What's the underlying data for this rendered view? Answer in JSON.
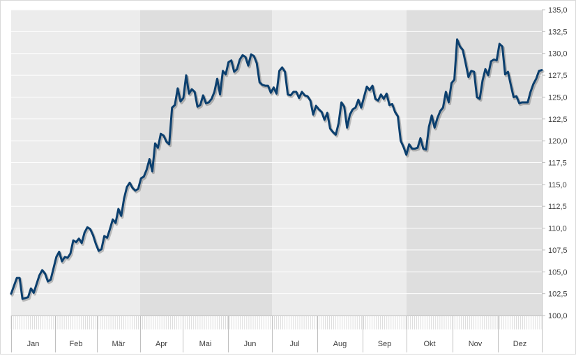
{
  "chart_data": {
    "type": "line",
    "title": "",
    "xlabel": "",
    "ylabel": "",
    "ylim": [
      100,
      135
    ],
    "y_ticks": [
      "100,0",
      "102,5",
      "105,0",
      "107,5",
      "110,0",
      "112,5",
      "115,0",
      "117,5",
      "120,0",
      "122,5",
      "125,0",
      "127,5",
      "130,0",
      "132,5",
      "135,0"
    ],
    "y_tick_values": [
      100,
      102.5,
      105,
      107.5,
      110,
      112.5,
      115,
      117.5,
      120,
      122.5,
      125,
      127.5,
      130,
      132.5,
      135
    ],
    "months": [
      "Jan",
      "Feb",
      "Mär",
      "Apr",
      "Mai",
      "Jun",
      "Jul",
      "Aug",
      "Sep",
      "Okt",
      "Nov",
      "Dez"
    ],
    "shaded_quarters": [
      "Apr",
      "Mai",
      "Jun",
      "Okt",
      "Nov",
      "Dez"
    ],
    "grid": true,
    "legend": "none",
    "colors": {
      "line": "#0b3f6e",
      "band_light": "#ececec",
      "band_dark": "#dedede",
      "grid": "#ffffff"
    },
    "series": [
      {
        "points": [
          [
            0,
            102.5
          ],
          [
            2,
            104.3
          ],
          [
            3,
            104.3
          ],
          [
            4,
            101.9
          ],
          [
            6,
            102.1
          ],
          [
            7,
            103.1
          ],
          [
            8,
            102.6
          ],
          [
            10,
            104.6
          ],
          [
            11,
            105.2
          ],
          [
            12,
            104.8
          ],
          [
            13,
            103.9
          ],
          [
            14,
            104.1
          ],
          [
            16,
            106.7
          ],
          [
            17,
            107.3
          ],
          [
            18,
            106.2
          ],
          [
            19,
            106.7
          ],
          [
            20,
            106.6
          ],
          [
            21,
            107.1
          ],
          [
            22,
            108.6
          ],
          [
            23,
            108.4
          ],
          [
            24,
            108.8
          ],
          [
            25,
            108.3
          ],
          [
            26,
            109.5
          ],
          [
            27,
            110.1
          ],
          [
            28,
            109.9
          ],
          [
            29,
            109.2
          ],
          [
            30,
            108.2
          ],
          [
            31,
            107.4
          ],
          [
            32,
            107.6
          ],
          [
            33,
            109.1
          ],
          [
            34,
            108.9
          ],
          [
            35,
            109.9
          ],
          [
            36,
            111.0
          ],
          [
            37,
            110.6
          ],
          [
            38,
            112.2
          ],
          [
            39,
            111.4
          ],
          [
            40,
            113.4
          ],
          [
            41,
            114.7
          ],
          [
            42,
            115.2
          ],
          [
            43,
            114.6
          ],
          [
            44,
            114.3
          ],
          [
            45,
            114.5
          ],
          [
            46,
            115.7
          ],
          [
            47,
            115.9
          ],
          [
            48,
            116.7
          ],
          [
            49,
            117.9
          ],
          [
            50,
            116.5
          ],
          [
            51,
            119.7
          ],
          [
            52,
            119.2
          ],
          [
            53,
            120.8
          ],
          [
            54,
            120.6
          ],
          [
            55,
            119.9
          ],
          [
            56,
            119.6
          ],
          [
            57,
            123.8
          ],
          [
            58,
            124.1
          ],
          [
            59,
            126.0
          ],
          [
            60,
            124.5
          ],
          [
            61,
            124.9
          ],
          [
            62,
            127.5
          ],
          [
            63,
            125.4
          ],
          [
            64,
            125.9
          ],
          [
            65,
            125.6
          ],
          [
            66,
            123.9
          ],
          [
            67,
            124.1
          ],
          [
            68,
            125.2
          ],
          [
            69,
            124.3
          ],
          [
            70,
            124.4
          ],
          [
            71,
            124.8
          ],
          [
            72,
            125.6
          ],
          [
            73,
            127.1
          ],
          [
            74,
            125.3
          ],
          [
            75,
            128.0
          ],
          [
            76,
            127.6
          ],
          [
            77,
            129.0
          ],
          [
            78,
            129.2
          ],
          [
            79,
            127.9
          ],
          [
            80,
            128.2
          ],
          [
            81,
            129.3
          ],
          [
            82,
            129.8
          ],
          [
            83,
            129.6
          ],
          [
            84,
            128.6
          ],
          [
            85,
            129.9
          ],
          [
            86,
            129.7
          ],
          [
            87,
            128.9
          ],
          [
            88,
            126.7
          ],
          [
            89,
            126.4
          ],
          [
            90,
            126.3
          ],
          [
            91,
            126.3
          ],
          [
            92,
            125.5
          ],
          [
            93,
            126.1
          ],
          [
            94,
            125.4
          ],
          [
            95,
            128.0
          ],
          [
            96,
            128.4
          ],
          [
            97,
            127.9
          ],
          [
            98,
            125.3
          ],
          [
            99,
            125.2
          ],
          [
            100,
            125.6
          ],
          [
            101,
            125.6
          ],
          [
            102,
            124.9
          ],
          [
            103,
            125.6
          ],
          [
            104,
            125.2
          ],
          [
            105,
            125.1
          ],
          [
            106,
            124.6
          ],
          [
            107,
            123.0
          ],
          [
            108,
            124.0
          ],
          [
            109,
            123.6
          ],
          [
            110,
            123.3
          ],
          [
            111,
            122.4
          ],
          [
            112,
            123.2
          ],
          [
            113,
            121.4
          ],
          [
            114,
            121.0
          ],
          [
            115,
            120.7
          ],
          [
            116,
            122.0
          ],
          [
            117,
            124.4
          ],
          [
            118,
            123.9
          ],
          [
            119,
            121.5
          ],
          [
            120,
            123.0
          ],
          [
            121,
            123.6
          ],
          [
            122,
            123.8
          ],
          [
            123,
            124.7
          ],
          [
            124,
            123.8
          ],
          [
            125,
            125.0
          ],
          [
            126,
            126.2
          ],
          [
            127,
            125.8
          ],
          [
            128,
            126.3
          ],
          [
            129,
            124.8
          ],
          [
            130,
            124.6
          ],
          [
            131,
            125.3
          ],
          [
            132,
            124.8
          ],
          [
            133,
            125.4
          ],
          [
            134,
            124.1
          ],
          [
            135,
            124.2
          ],
          [
            136,
            123.3
          ],
          [
            137,
            122.8
          ],
          [
            138,
            120.0
          ],
          [
            139,
            119.3
          ],
          [
            140,
            118.4
          ],
          [
            141,
            119.6
          ],
          [
            142,
            119.1
          ],
          [
            143,
            119.1
          ],
          [
            144,
            119.2
          ],
          [
            145,
            120.3
          ],
          [
            146,
            119.1
          ],
          [
            147,
            119.0
          ],
          [
            148,
            121.6
          ],
          [
            149,
            122.9
          ],
          [
            150,
            121.5
          ],
          [
            151,
            122.6
          ],
          [
            152,
            123.4
          ],
          [
            153,
            123.8
          ],
          [
            154,
            125.6
          ],
          [
            155,
            124.4
          ],
          [
            156,
            126.6
          ],
          [
            157,
            127.0
          ],
          [
            158,
            131.6
          ],
          [
            159,
            130.8
          ],
          [
            160,
            130.4
          ],
          [
            161,
            128.9
          ],
          [
            162,
            127.3
          ],
          [
            163,
            128.0
          ],
          [
            164,
            127.9
          ],
          [
            165,
            125.0
          ],
          [
            166,
            124.8
          ],
          [
            167,
            126.9
          ],
          [
            168,
            128.2
          ],
          [
            169,
            127.5
          ],
          [
            170,
            129.1
          ],
          [
            171,
            129.3
          ],
          [
            172,
            129.2
          ],
          [
            173,
            131.1
          ],
          [
            174,
            130.8
          ],
          [
            175,
            127.6
          ],
          [
            176,
            127.9
          ],
          [
            177,
            126.4
          ],
          [
            178,
            125.0
          ],
          [
            179,
            125.1
          ],
          [
            180,
            124.3
          ],
          [
            181,
            124.4
          ],
          [
            182,
            124.4
          ],
          [
            183,
            124.4
          ],
          [
            184,
            125.6
          ],
          [
            185,
            126.5
          ],
          [
            186,
            127.1
          ],
          [
            187,
            128.0
          ],
          [
            188,
            128.1
          ]
        ]
      }
    ]
  }
}
